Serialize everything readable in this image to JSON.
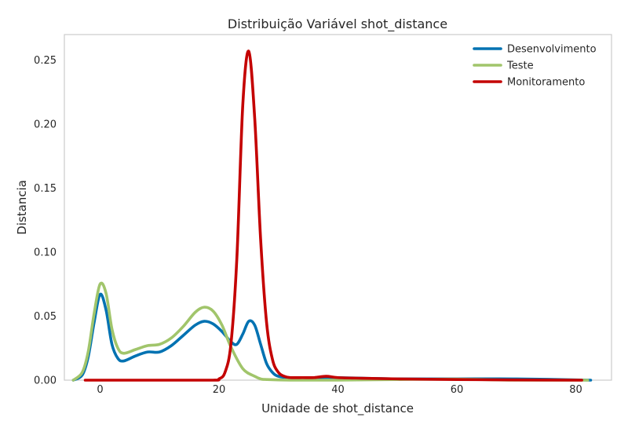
{
  "chart_data": {
    "type": "line",
    "title": "Distribuição Variável shot_distance",
    "xlabel": "Unidade de shot_distance",
    "ylabel": "Distancia",
    "xlim": [
      -6,
      86
    ],
    "ylim": [
      0,
      0.27
    ],
    "xticks": [
      0,
      20,
      40,
      60,
      80
    ],
    "yticks": [
      0.0,
      0.05,
      0.1,
      0.15,
      0.2,
      0.25
    ],
    "ytick_labels": [
      "0.00",
      "0.05",
      "0.10",
      "0.15",
      "0.20",
      "0.25"
    ],
    "grid": false,
    "legend_position": "top-right",
    "series": [
      {
        "name": "Desenvolvimento",
        "color": "#0072B2",
        "x": [
          -4.5,
          -3,
          -2,
          -1,
          0,
          1,
          2,
          3,
          4,
          6,
          8,
          10,
          12,
          14,
          16,
          17.5,
          19,
          20.5,
          22,
          23,
          24,
          25,
          26,
          27,
          28,
          29,
          30,
          32,
          36,
          40,
          50,
          60,
          70,
          82.5
        ],
        "y": [
          0.0,
          0.004,
          0.018,
          0.045,
          0.067,
          0.055,
          0.028,
          0.017,
          0.015,
          0.019,
          0.022,
          0.022,
          0.027,
          0.035,
          0.043,
          0.046,
          0.044,
          0.038,
          0.03,
          0.028,
          0.036,
          0.046,
          0.043,
          0.028,
          0.013,
          0.006,
          0.003,
          0.002,
          0.002,
          0.002,
          0.001,
          0.001,
          0.001,
          0.0
        ]
      },
      {
        "name": "Teste",
        "color": "#A1C56B",
        "x": [
          -4.5,
          -3,
          -2,
          -1,
          0,
          1,
          2,
          3,
          4,
          6,
          8,
          10,
          12,
          14,
          16,
          17.5,
          19,
          20.5,
          22,
          24,
          26,
          27,
          28,
          32,
          40,
          50,
          60,
          70,
          82
        ],
        "y": [
          0.0,
          0.006,
          0.022,
          0.052,
          0.075,
          0.068,
          0.04,
          0.025,
          0.021,
          0.024,
          0.027,
          0.028,
          0.033,
          0.042,
          0.053,
          0.057,
          0.054,
          0.043,
          0.026,
          0.009,
          0.003,
          0.001,
          0.0005,
          0.0,
          0.0,
          0.0005,
          0.0008,
          0.0,
          0.0
        ]
      },
      {
        "name": "Monitoramento",
        "color": "#C40000",
        "x": [
          -2.5,
          10,
          19,
          20,
          21,
          22,
          23,
          24,
          25,
          26,
          27,
          28,
          29,
          30,
          31,
          32,
          34,
          36,
          38,
          40,
          44,
          50,
          60,
          70,
          81
        ],
        "y": [
          0.0,
          0.0,
          0.0,
          0.001,
          0.006,
          0.028,
          0.095,
          0.215,
          0.257,
          0.205,
          0.11,
          0.045,
          0.016,
          0.006,
          0.003,
          0.002,
          0.002,
          0.002,
          0.003,
          0.002,
          0.0015,
          0.001,
          0.0005,
          0.0002,
          0.0
        ]
      }
    ]
  }
}
